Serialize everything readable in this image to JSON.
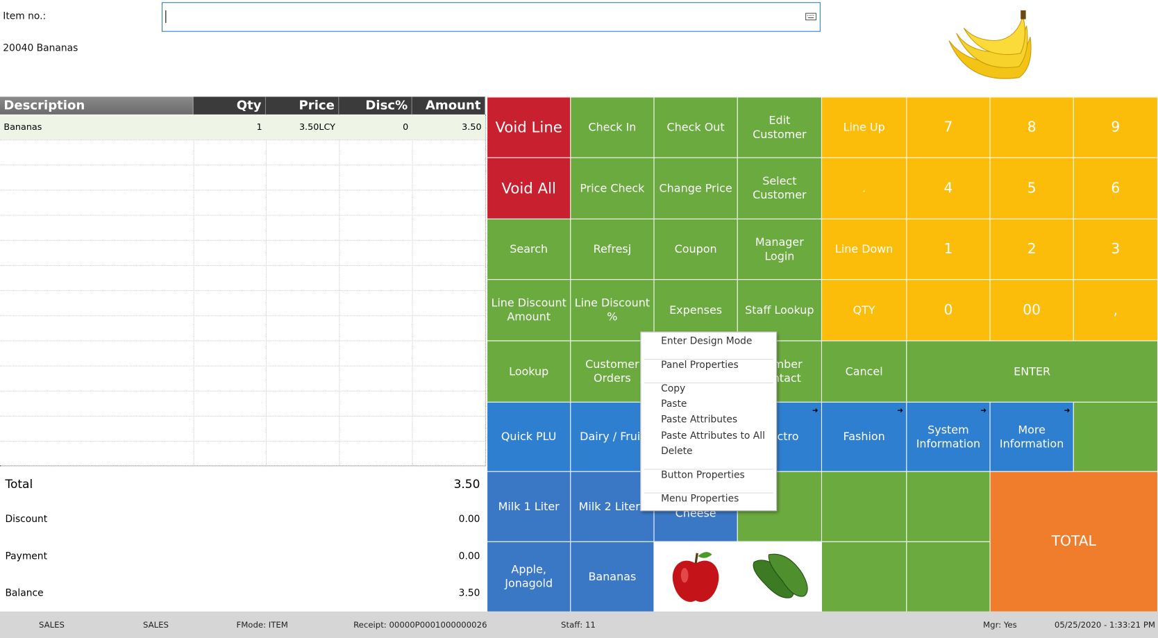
{
  "header": {
    "item_label": "Item no.:",
    "item_info": "20040 Bananas"
  },
  "table": {
    "columns": [
      "Description",
      "Qty",
      "Price",
      "Disc%",
      "Amount"
    ],
    "rows": [
      [
        "Bananas",
        "1",
        "3.50LCY",
        "0",
        "3.50"
      ]
    ]
  },
  "totals": [
    {
      "label": "Total",
      "value": "3.50"
    },
    {
      "label": "Discount",
      "value": "0.00"
    },
    {
      "label": "Payment",
      "value": "0.00"
    },
    {
      "label": "Balance",
      "value": "3.50"
    }
  ],
  "buttons": [
    {
      "label": "Void Line"
    },
    {
      "label": "Check In"
    },
    {
      "label": "Check Out"
    },
    {
      "label": "Edit Customer"
    },
    {
      "label": "Line Up"
    },
    {
      "label": "7"
    },
    {
      "label": "8"
    },
    {
      "label": "9"
    },
    {
      "label": "Void All"
    },
    {
      "label": "Price Check"
    },
    {
      "label": "Change Price"
    },
    {
      "label": "Select Customer"
    },
    {
      "label": "."
    },
    {
      "label": "4"
    },
    {
      "label": "5"
    },
    {
      "label": "6"
    },
    {
      "label": "Search"
    },
    {
      "label": "Refresj"
    },
    {
      "label": "Coupon"
    },
    {
      "label": "Manager Login"
    },
    {
      "label": "Line Down"
    },
    {
      "label": "1"
    },
    {
      "label": "2"
    },
    {
      "label": "3"
    },
    {
      "label": "Line Discount Amount"
    },
    {
      "label": "Line Discount %"
    },
    {
      "label": "Expenses"
    },
    {
      "label": "Staff Lookup"
    },
    {
      "label": "QTY"
    },
    {
      "label": "0"
    },
    {
      "label": "00"
    },
    {
      "label": ","
    },
    {
      "label": "Lookup"
    },
    {
      "label": "Customer Orders"
    },
    {
      "label": "Member Contact"
    },
    {
      "label": "Cancel"
    },
    {
      "label": "ENTER"
    },
    {
      "label": "Quick PLU"
    },
    {
      "label": "Dairy / Fruit"
    },
    {
      "label": "Electro"
    },
    {
      "label": "Fashion"
    },
    {
      "label": "System Information"
    },
    {
      "label": "More Information"
    },
    {
      "label": "Milk 1 Liter"
    },
    {
      "label": "Milk 2 Liters"
    },
    {
      "label": "Gouda Cheese"
    },
    {
      "label": "TOTAL"
    },
    {
      "label": "Apple, Jonagold"
    },
    {
      "label": "Bananas"
    }
  ],
  "context_menu": [
    "Enter Design Mode",
    "Panel Properties",
    "Copy",
    "Paste",
    "Paste Attributes",
    "Paste Attributes to All",
    "Delete",
    "Button Properties",
    "Menu Properties"
  ],
  "status_bar": [
    "SALES",
    "SALES",
    "FMode: ITEM",
    "Receipt: 00000P0001000000026",
    "Staff: 11",
    "Mgr: Yes",
    "05/25/2020 - 1:33:21 PM"
  ]
}
